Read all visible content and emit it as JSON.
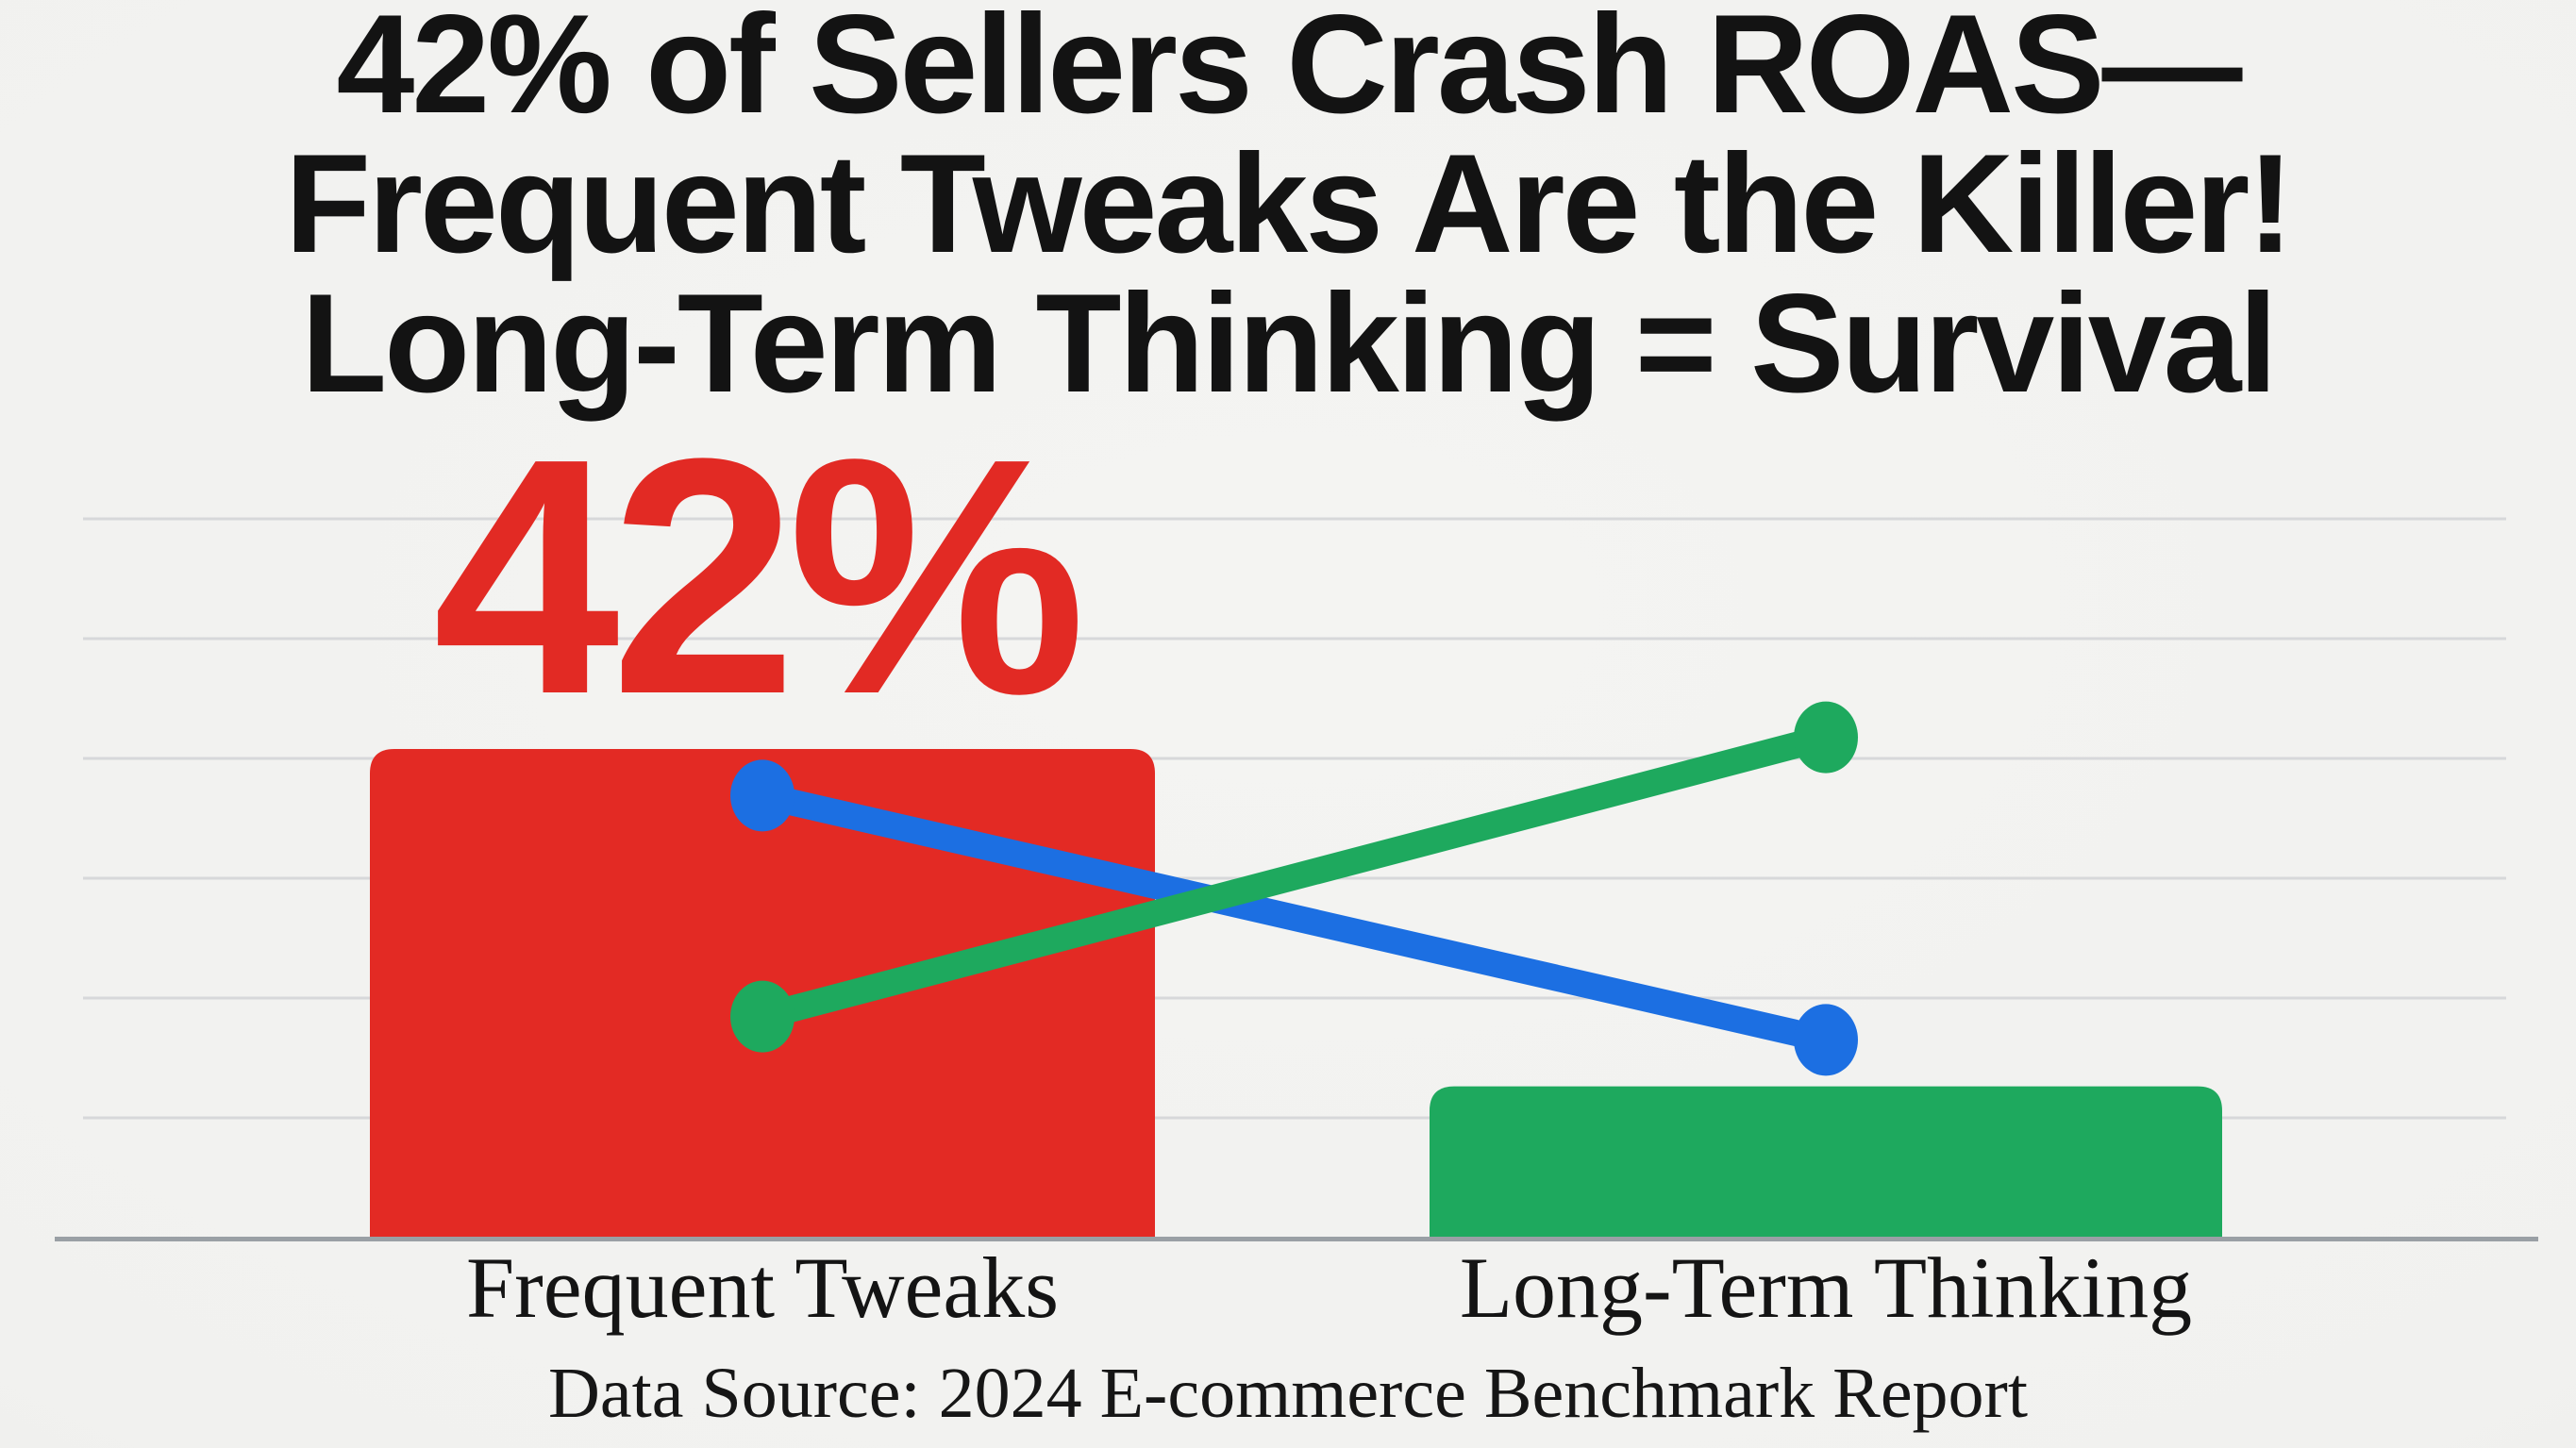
{
  "page": {
    "title_lines": [
      "42% of Sellers Crash ROAS—",
      "Frequent Tweaks Are the Killer!",
      "Long-Term Thinking = Survival"
    ]
  },
  "chart_data": {
    "type": "bar",
    "title": "42% of Sellers Crash ROAS—Frequent Tweaks Are the Killer! Long-Term Thinking = Survival",
    "categories": [
      "Frequent Tweaks",
      "Long-Term Thinking"
    ],
    "values": [
      42,
      13
    ],
    "bar_colors": [
      "#e32a24",
      "#1ea95e"
    ],
    "value_label": {
      "text": "42%",
      "color": "#e22a24",
      "applies_to": "Frequent Tweaks"
    },
    "series": [
      {
        "name": "declining-trend-line",
        "type": "line",
        "color": "#1c6fe2",
        "values": [
          38,
          17
        ]
      },
      {
        "name": "rising-trend-line",
        "type": "line",
        "color": "#1ea95e",
        "values": [
          19,
          43
        ]
      }
    ],
    "xlabel": "",
    "ylabel": "",
    "ylim": [
      0,
      50
    ],
    "grid": true,
    "gridline_count": 6,
    "gridline_color": "#d7d8da",
    "axis_color": "#9aa0a5",
    "background": "#f1f1ef",
    "legend": "none"
  },
  "footer": {
    "source": "Data Source: 2024 E-commerce Benchmark Report"
  }
}
